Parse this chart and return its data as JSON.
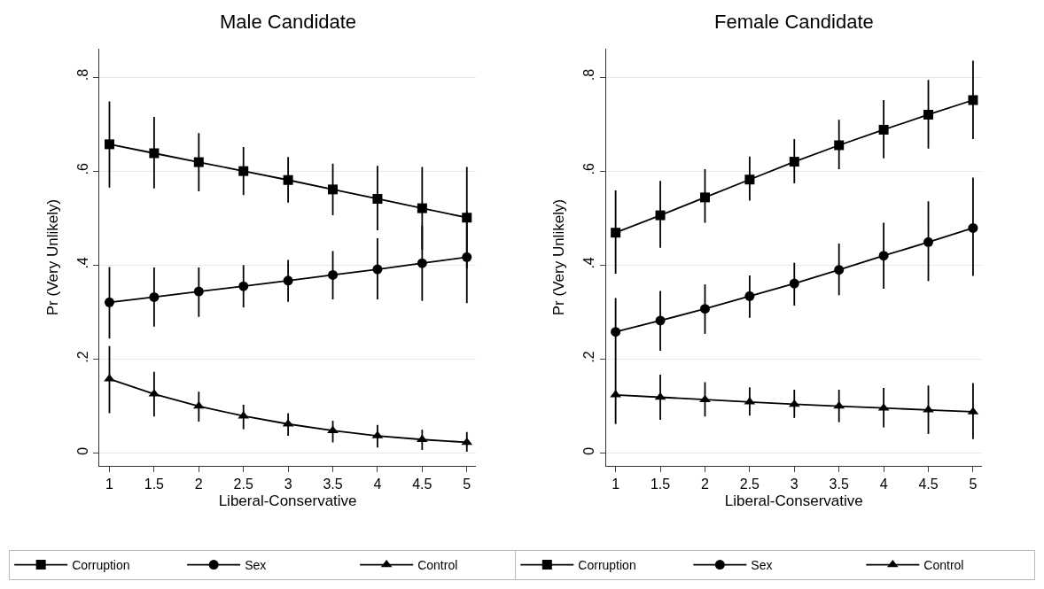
{
  "chart_data": [
    {
      "type": "line",
      "title": "Male Candidate",
      "xlabel": "Liberal-Conservative",
      "ylabel": "Pr (Very Unlikely)",
      "x": [
        1,
        1.5,
        2,
        2.5,
        3,
        3.5,
        4,
        4.5,
        5
      ],
      "xlim": [
        0.89,
        5.1
      ],
      "xticks": [
        1,
        1.5,
        2,
        2.5,
        3,
        3.5,
        4,
        4.5,
        5
      ],
      "ylim": [
        -0.027,
        0.86
      ],
      "yticks": [
        0,
        {
          "value": 0.2,
          "label": ".2"
        },
        {
          "value": 0.4,
          "label": ".4"
        },
        {
          "value": 0.6,
          "label": ".6"
        },
        {
          "value": 0.8,
          "label": ".8"
        }
      ],
      "grid": "y",
      "legend": "bottom",
      "line_style": "solid",
      "series": [
        {
          "name": "Corruption",
          "color": "#000000",
          "marker": "square",
          "values": [
            0.657,
            0.638,
            0.619,
            0.6,
            0.581,
            0.561,
            0.541,
            0.521,
            0.501
          ],
          "errors": [
            [
              0.565,
              0.748
            ],
            [
              0.563,
              0.715
            ],
            [
              0.557,
              0.681
            ],
            [
              0.549,
              0.651
            ],
            [
              0.533,
              0.63
            ],
            [
              0.506,
              0.616
            ],
            [
              0.474,
              0.611
            ],
            [
              0.433,
              0.609
            ],
            [
              0.393,
              0.609
            ]
          ]
        },
        {
          "name": "Sex",
          "color": "#000000",
          "marker": "circle",
          "values": [
            0.321,
            0.332,
            0.344,
            0.355,
            0.367,
            0.379,
            0.391,
            0.404,
            0.417
          ],
          "errors": [
            [
              0.244,
              0.396
            ],
            [
              0.269,
              0.395
            ],
            [
              0.29,
              0.395
            ],
            [
              0.31,
              0.4
            ],
            [
              0.322,
              0.411
            ],
            [
              0.327,
              0.43
            ],
            [
              0.327,
              0.457
            ],
            [
              0.324,
              0.484
            ],
            [
              0.319,
              0.515
            ]
          ]
        },
        {
          "name": "Control",
          "color": "#000000",
          "marker": "triangle",
          "values": [
            0.158,
            0.126,
            0.1,
            0.079,
            0.062,
            0.048,
            0.037,
            0.029,
            0.023
          ],
          "errors": [
            [
              0.085,
              0.228
            ],
            [
              0.078,
              0.173
            ],
            [
              0.067,
              0.131
            ],
            [
              0.051,
              0.103
            ],
            [
              0.037,
              0.085
            ],
            [
              0.023,
              0.069
            ],
            [
              0.012,
              0.06
            ],
            [
              0.007,
              0.05
            ],
            [
              0.003,
              0.045
            ]
          ]
        }
      ]
    },
    {
      "type": "line",
      "title": "Female Candidate",
      "xlabel": "Liberal-Conservative",
      "ylabel": "Pr (Very Unlikely)",
      "x": [
        1,
        1.5,
        2,
        2.5,
        3,
        3.5,
        4,
        4.5,
        5
      ],
      "xlim": [
        0.89,
        5.1
      ],
      "xticks": [
        1,
        1.5,
        2,
        2.5,
        3,
        3.5,
        4,
        4.5,
        5
      ],
      "ylim": [
        -0.027,
        0.86
      ],
      "yticks": [
        0,
        {
          "value": 0.2,
          "label": ".2"
        },
        {
          "value": 0.4,
          "label": ".4"
        },
        {
          "value": 0.6,
          "label": ".6"
        },
        {
          "value": 0.8,
          "label": ".8"
        }
      ],
      "grid": "y",
      "legend": "bottom",
      "line_style": "solid",
      "series": [
        {
          "name": "Corruption",
          "color": "#000000",
          "marker": "square",
          "values": [
            0.469,
            0.506,
            0.544,
            0.582,
            0.62,
            0.655,
            0.688,
            0.72,
            0.751
          ],
          "errors": [
            [
              0.382,
              0.559
            ],
            [
              0.437,
              0.579
            ],
            [
              0.49,
              0.604
            ],
            [
              0.537,
              0.631
            ],
            [
              0.574,
              0.668
            ],
            [
              0.604,
              0.709
            ],
            [
              0.627,
              0.751
            ],
            [
              0.648,
              0.794
            ],
            [
              0.668,
              0.835
            ]
          ]
        },
        {
          "name": "Sex",
          "color": "#000000",
          "marker": "circle",
          "values": [
            0.258,
            0.282,
            0.307,
            0.334,
            0.361,
            0.39,
            0.42,
            0.449,
            0.479
          ],
          "errors": [
            [
              0.186,
              0.33
            ],
            [
              0.218,
              0.345
            ],
            [
              0.254,
              0.359
            ],
            [
              0.288,
              0.378
            ],
            [
              0.314,
              0.405
            ],
            [
              0.336,
              0.446
            ],
            [
              0.35,
              0.49
            ],
            [
              0.366,
              0.536
            ],
            [
              0.377,
              0.586
            ]
          ]
        },
        {
          "name": "Control",
          "color": "#000000",
          "marker": "triangle",
          "values": [
            0.124,
            0.119,
            0.114,
            0.109,
            0.104,
            0.1,
            0.096,
            0.092,
            0.088
          ],
          "errors": [
            [
              0.062,
              0.186
            ],
            [
              0.071,
              0.167
            ],
            [
              0.078,
              0.151
            ],
            [
              0.08,
              0.14
            ],
            [
              0.075,
              0.135
            ],
            [
              0.066,
              0.135
            ],
            [
              0.055,
              0.139
            ],
            [
              0.041,
              0.144
            ],
            [
              0.03,
              0.149
            ]
          ]
        }
      ]
    }
  ]
}
